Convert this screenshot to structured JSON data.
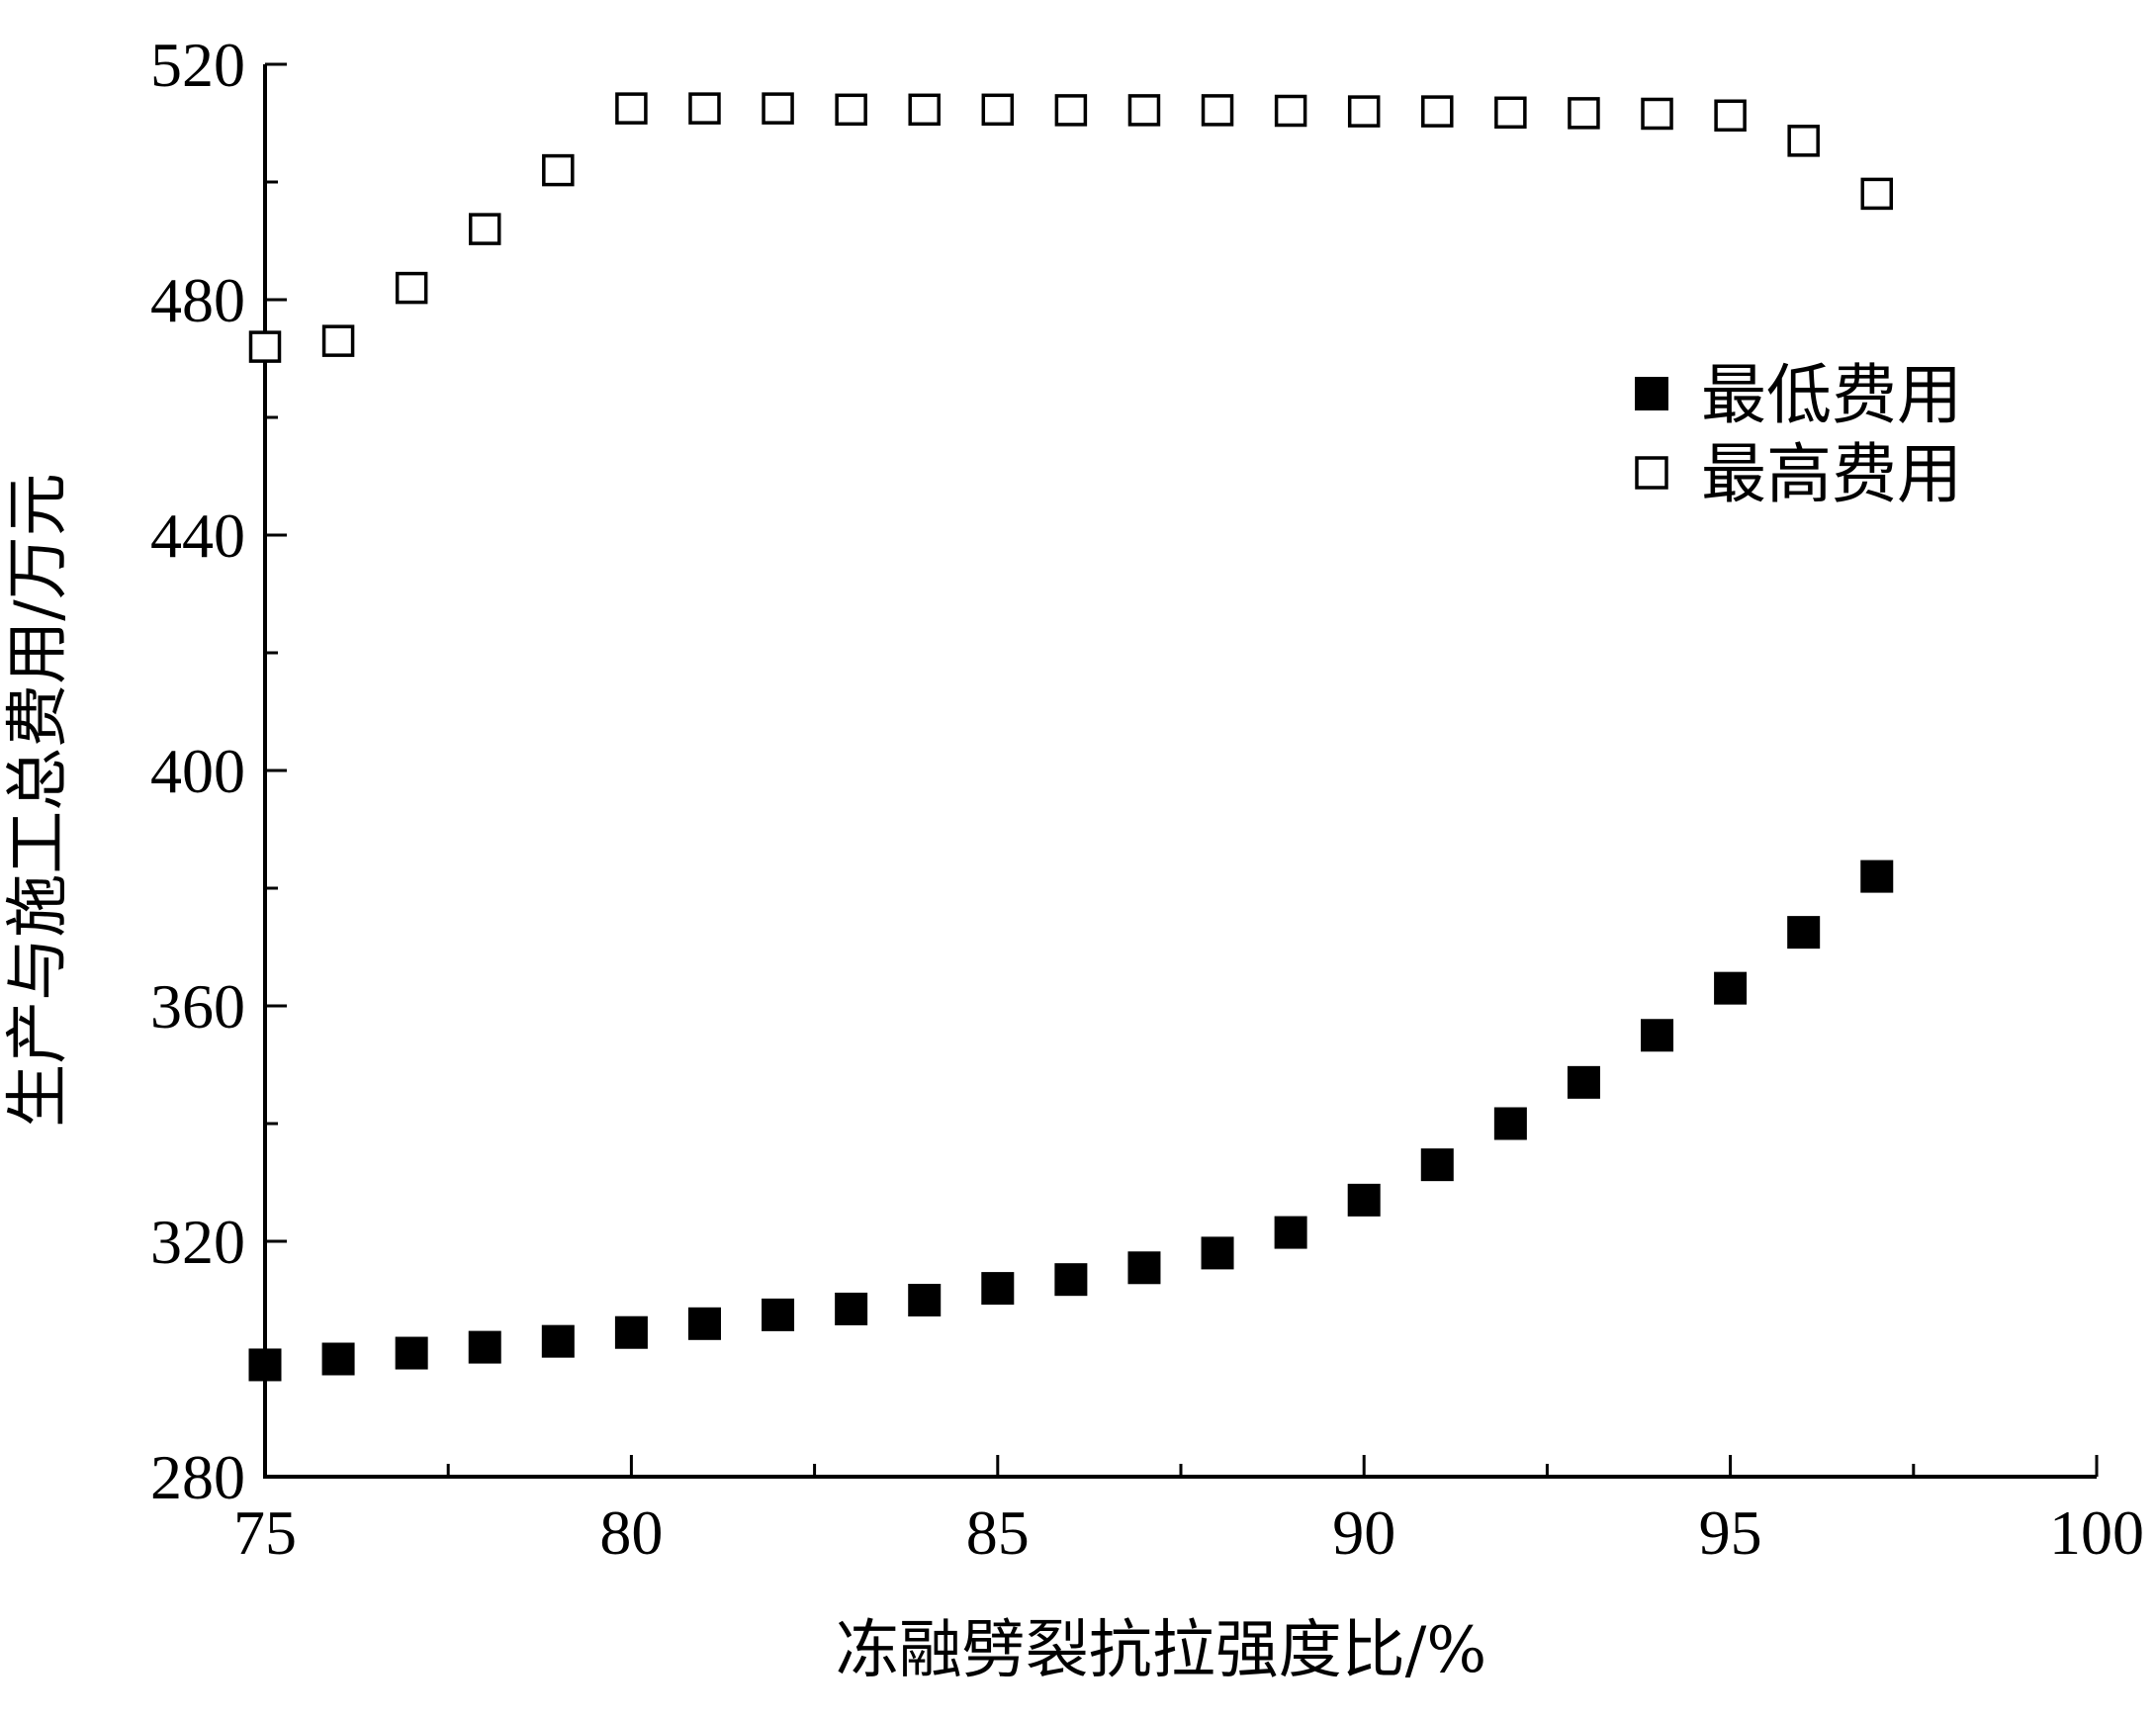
{
  "chart_data": {
    "type": "scatter",
    "xlabel": "冻融劈裂抗拉强度比/%",
    "ylabel": "生产与施工总费用/万元",
    "xlim": [
      75,
      100
    ],
    "ylim": [
      280,
      520
    ],
    "x_ticks": [
      "75",
      "80",
      "85",
      "90",
      "95",
      "100"
    ],
    "y_ticks": [
      "280",
      "320",
      "360",
      "400",
      "440",
      "480",
      "520"
    ],
    "legend_position": "top-right",
    "grid": false,
    "series": [
      {
        "name": "最低费用",
        "marker": "filled-square",
        "color": "#000000",
        "x": [
          75,
          76,
          77,
          78,
          79,
          80,
          81,
          82,
          83,
          84,
          85,
          86,
          87,
          88,
          89,
          90,
          91,
          92,
          93,
          94,
          95,
          96,
          97
        ],
        "y": [
          299,
          300,
          301,
          302,
          303,
          304.5,
          306,
          307.5,
          308.5,
          310,
          312,
          313.5,
          315.5,
          318,
          321.5,
          327,
          333,
          340,
          347,
          355,
          363,
          372.5,
          382
        ]
      },
      {
        "name": "最高费用",
        "marker": "open-square",
        "color": "#000000",
        "x": [
          75,
          76,
          77,
          78,
          79,
          80,
          81,
          82,
          83,
          84,
          85,
          86,
          87,
          88,
          89,
          90,
          91,
          92,
          93,
          94,
          95,
          96,
          97
        ],
        "y": [
          472,
          473,
          482,
          492,
          502,
          512.5,
          512.5,
          512.5,
          512.3,
          512.3,
          512.3,
          512.2,
          512.2,
          512.2,
          512.1,
          512,
          512,
          511.8,
          511.7,
          511.6,
          511.3,
          507,
          498
        ]
      }
    ]
  }
}
